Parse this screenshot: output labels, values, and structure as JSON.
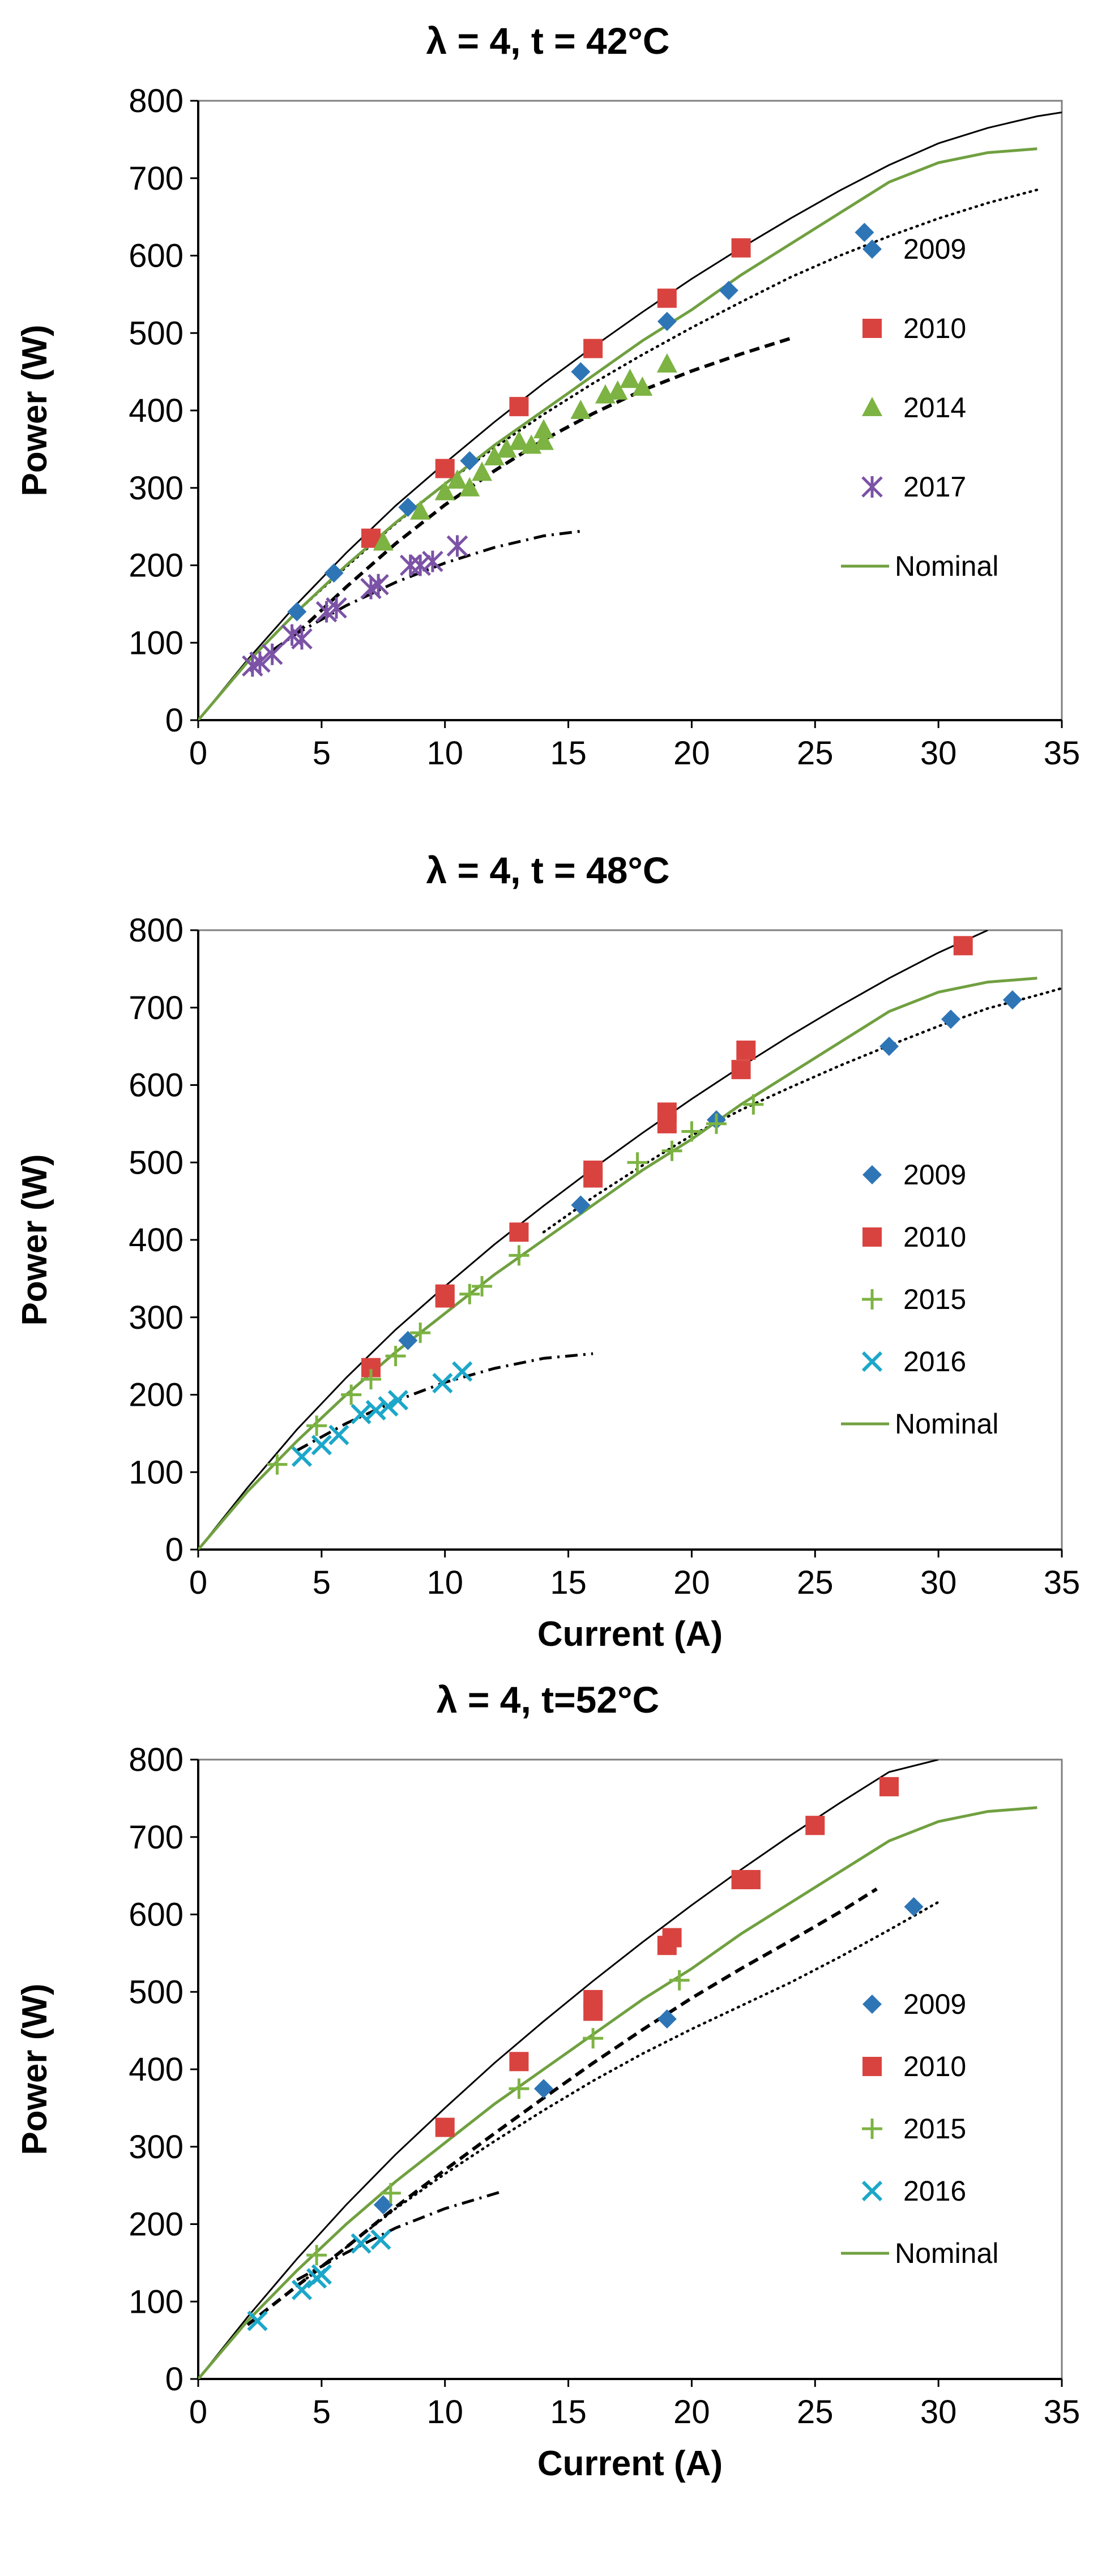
{
  "chart_data": [
    {
      "type": "scatter",
      "title": "λ = 4, t = 42°C",
      "xlabel": "",
      "ylabel": "Power (W)",
      "xlim": [
        0,
        35
      ],
      "ylim": [
        0,
        800
      ],
      "xticks": [
        "0",
        "5",
        "10",
        "15",
        "20",
        "25",
        "30",
        "35"
      ],
      "yticks": [
        "0",
        "100",
        "200",
        "300",
        "400",
        "500",
        "600",
        "700",
        "800"
      ],
      "grid": false,
      "legend_position": "right",
      "series": [
        {
          "name": "2009",
          "marker": "diamond",
          "color": "#2e75b6",
          "x": [
            4.0,
            5.5,
            8.5,
            11.0,
            15.5,
            19.0,
            21.5,
            27.0
          ],
          "y": [
            140,
            190,
            275,
            335,
            450,
            515,
            555,
            630
          ]
        },
        {
          "name": "2010",
          "marker": "square",
          "color": "#d9433f",
          "x": [
            7.0,
            10.0,
            13.0,
            16.0,
            19.0,
            22.0
          ],
          "y": [
            235,
            325,
            405,
            480,
            545,
            610
          ]
        },
        {
          "name": "2014",
          "marker": "triangle",
          "color": "#7cb342",
          "x": [
            7.5,
            9.0,
            10.0,
            10.5,
            11.0,
            11.5,
            12.0,
            12.5,
            13.0,
            13.5,
            14.0,
            14.0,
            15.5,
            16.5,
            17.0,
            17.5,
            18.0,
            19.0
          ],
          "y": [
            230,
            270,
            295,
            310,
            300,
            320,
            340,
            350,
            360,
            355,
            375,
            360,
            400,
            420,
            425,
            440,
            430,
            460
          ]
        },
        {
          "name": "2017",
          "marker": "asterisk",
          "color": "#7b52a6",
          "x": [
            2.2,
            2.5,
            3.0,
            3.8,
            4.2,
            5.2,
            5.6,
            7.0,
            7.3,
            8.6,
            9.0,
            9.5,
            10.5
          ],
          "y": [
            70,
            75,
            85,
            110,
            105,
            140,
            145,
            170,
            175,
            200,
            200,
            205,
            225
          ]
        },
        {
          "name": "Nominal",
          "marker": "line",
          "color": "#70a040",
          "x": [
            0,
            2,
            4,
            6,
            8,
            10,
            12,
            14,
            16,
            18,
            20,
            22,
            24,
            26,
            28,
            30,
            32,
            34
          ],
          "y": [
            0,
            75,
            140,
            200,
            255,
            305,
            355,
            400,
            445,
            490,
            530,
            575,
            615,
            655,
            695,
            720,
            733,
            738
          ]
        }
      ],
      "fits": [
        {
          "style": "solid-thin",
          "x": [
            0,
            2,
            4,
            6,
            8,
            10,
            12,
            14,
            16,
            18,
            20,
            22,
            24,
            26,
            28,
            30,
            32,
            34,
            35
          ],
          "y": [
            0,
            78,
            150,
            216,
            277,
            332,
            385,
            435,
            482,
            527,
            570,
            610,
            648,
            684,
            717,
            745,
            765,
            780,
            785
          ]
        },
        {
          "style": "dotted",
          "x": [
            4,
            6,
            8,
            10,
            12,
            14,
            16,
            18,
            20,
            22,
            24,
            26,
            28,
            30,
            32,
            34
          ],
          "y": [
            140,
            198,
            254,
            305,
            352,
            395,
            435,
            472,
            507,
            540,
            572,
            600,
            625,
            648,
            668,
            685
          ]
        },
        {
          "style": "dashed",
          "x": [
            4,
            6,
            8,
            10,
            12,
            14,
            16,
            18,
            20,
            22,
            24
          ],
          "y": [
            112,
            172,
            228,
            278,
            322,
            362,
            396,
            426,
            451,
            473,
            493
          ]
        },
        {
          "style": "dash-dot",
          "x": [
            3,
            4,
            6,
            8,
            10,
            12,
            14,
            15.5
          ],
          "y": [
            90,
            112,
            148,
            178,
            203,
            223,
            238,
            244
          ]
        }
      ]
    },
    {
      "type": "scatter",
      "title": "λ = 4, t = 48°C",
      "xlabel": "Current (A)",
      "ylabel": "Power (W)",
      "xlim": [
        0,
        35
      ],
      "ylim": [
        0,
        800
      ],
      "xticks": [
        "0",
        "5",
        "10",
        "15",
        "20",
        "25",
        "30",
        "35"
      ],
      "yticks": [
        "0",
        "100",
        "200",
        "300",
        "400",
        "500",
        "600",
        "700",
        "800"
      ],
      "grid": false,
      "legend_position": "right",
      "series": [
        {
          "name": "2009",
          "marker": "diamond",
          "color": "#2e75b6",
          "x": [
            8.5,
            15.5,
            21.0,
            28.0,
            30.5,
            33.0
          ],
          "y": [
            270,
            445,
            555,
            650,
            685,
            710
          ]
        },
        {
          "name": "2010",
          "marker": "square",
          "color": "#d9433f",
          "x": [
            7.0,
            10.0,
            10.0,
            13.0,
            16.0,
            16.0,
            19.0,
            19.0,
            22.0,
            22.2,
            31.0
          ],
          "y": [
            235,
            325,
            330,
            410,
            480,
            490,
            550,
            565,
            620,
            645,
            780
          ]
        },
        {
          "name": "2015",
          "marker": "plus",
          "color": "#7cb342",
          "x": [
            3.2,
            4.8,
            6.2,
            7.0,
            8.0,
            9.0,
            11.0,
            11.5,
            13.0,
            17.8,
            19.2,
            20.0,
            21.0,
            22.5
          ],
          "y": [
            110,
            160,
            200,
            220,
            250,
            280,
            330,
            340,
            380,
            500,
            515,
            540,
            550,
            575
          ]
        },
        {
          "name": "2016",
          "marker": "x",
          "color": "#1ca7c9",
          "x": [
            4.2,
            5.0,
            5.7,
            6.6,
            7.2,
            7.7,
            8.1,
            9.9,
            10.7
          ],
          "y": [
            120,
            135,
            148,
            175,
            180,
            185,
            193,
            215,
            230
          ]
        },
        {
          "name": "Nominal",
          "marker": "line",
          "color": "#70a040",
          "x": [
            0,
            2,
            4,
            6,
            8,
            10,
            12,
            14,
            16,
            18,
            20,
            22,
            24,
            26,
            28,
            30,
            32,
            34
          ],
          "y": [
            0,
            75,
            140,
            200,
            255,
            305,
            355,
            400,
            445,
            490,
            530,
            575,
            615,
            655,
            695,
            720,
            733,
            738
          ]
        }
      ],
      "fits": [
        {
          "style": "solid-thin",
          "x": [
            0,
            2,
            4,
            6,
            8,
            10,
            12,
            14,
            16,
            18,
            20,
            22,
            24,
            26,
            28,
            30,
            32
          ],
          "y": [
            0,
            80,
            155,
            222,
            284,
            340,
            394,
            444,
            492,
            538,
            582,
            624,
            664,
            702,
            738,
            771,
            800
          ]
        },
        {
          "style": "dotted",
          "x": [
            14,
            16,
            18,
            20,
            22,
            24,
            26,
            28,
            30,
            32,
            34,
            35
          ],
          "y": [
            410,
            455,
            496,
            535,
            568,
            597,
            625,
            651,
            676,
            699,
            716,
            725
          ]
        },
        {
          "style": "dash-dot",
          "x": [
            4,
            6,
            8,
            10,
            12,
            14,
            16
          ],
          "y": [
            128,
            163,
            192,
            216,
            234,
            247,
            253
          ]
        }
      ]
    },
    {
      "type": "scatter",
      "title": "λ = 4, t=52°C",
      "xlabel": "Current (A)",
      "ylabel": "Power (W)",
      "xlim": [
        0,
        35
      ],
      "ylim": [
        0,
        800
      ],
      "xticks": [
        "0",
        "5",
        "10",
        "15",
        "20",
        "25",
        "30",
        "35"
      ],
      "yticks": [
        "0",
        "100",
        "200",
        "300",
        "400",
        "500",
        "600",
        "700",
        "800"
      ],
      "grid": false,
      "legend_position": "right",
      "series": [
        {
          "name": "2009",
          "marker": "diamond",
          "color": "#2e75b6",
          "x": [
            7.5,
            14.0,
            19.0,
            29.0
          ],
          "y": [
            225,
            375,
            465,
            610
          ]
        },
        {
          "name": "2010",
          "marker": "square",
          "color": "#d9433f",
          "x": [
            10.0,
            13.0,
            16.0,
            16.0,
            19.0,
            19.2,
            22.0,
            22.4,
            25.0,
            28.0
          ],
          "y": [
            325,
            410,
            475,
            490,
            560,
            570,
            645,
            645,
            715,
            765
          ]
        },
        {
          "name": "2015",
          "marker": "plus",
          "color": "#7cb342",
          "x": [
            4.8,
            7.8,
            13.0,
            16.0,
            19.5
          ],
          "y": [
            160,
            240,
            375,
            440,
            515
          ]
        },
        {
          "name": "2016",
          "marker": "x",
          "color": "#1ca7c9",
          "x": [
            2.4,
            4.2,
            4.8,
            5.0,
            6.6,
            7.4
          ],
          "y": [
            75,
            115,
            130,
            135,
            175,
            180
          ]
        },
        {
          "name": "Nominal",
          "marker": "line",
          "color": "#70a040",
          "x": [
            0,
            2,
            4,
            6,
            8,
            10,
            12,
            14,
            16,
            18,
            20,
            22,
            24,
            26,
            28,
            30,
            32,
            34
          ],
          "y": [
            0,
            75,
            140,
            200,
            255,
            305,
            355,
            400,
            445,
            490,
            530,
            575,
            615,
            655,
            695,
            720,
            733,
            738
          ]
        }
      ],
      "fits": [
        {
          "style": "solid-thin",
          "x": [
            0,
            2,
            4,
            6,
            8,
            10,
            12,
            14,
            16,
            18,
            20,
            22,
            24,
            26,
            28,
            30
          ],
          "y": [
            0,
            80,
            155,
            225,
            290,
            350,
            408,
            462,
            514,
            564,
            612,
            658,
            702,
            744,
            784,
            800
          ]
        },
        {
          "style": "dashed",
          "x": [
            2,
            4,
            6,
            8,
            10,
            12,
            14,
            16,
            18,
            20,
            22,
            24,
            26,
            27.5
          ],
          "y": [
            70,
            120,
            170,
            222,
            270,
            317,
            363,
            408,
            451,
            492,
            530,
            566,
            603,
            633
          ]
        },
        {
          "style": "dotted",
          "x": [
            4,
            6,
            8,
            10,
            12,
            14,
            16,
            18,
            20,
            22,
            24,
            26,
            28,
            30
          ],
          "y": [
            120,
            170,
            220,
            265,
            307,
            347,
            385,
            420,
            452,
            482,
            512,
            545,
            580,
            616
          ]
        },
        {
          "style": "dash-dot",
          "x": [
            4,
            6,
            8,
            10,
            12.4
          ],
          "y": [
            128,
            163,
            195,
            220,
            243
          ]
        }
      ]
    }
  ]
}
